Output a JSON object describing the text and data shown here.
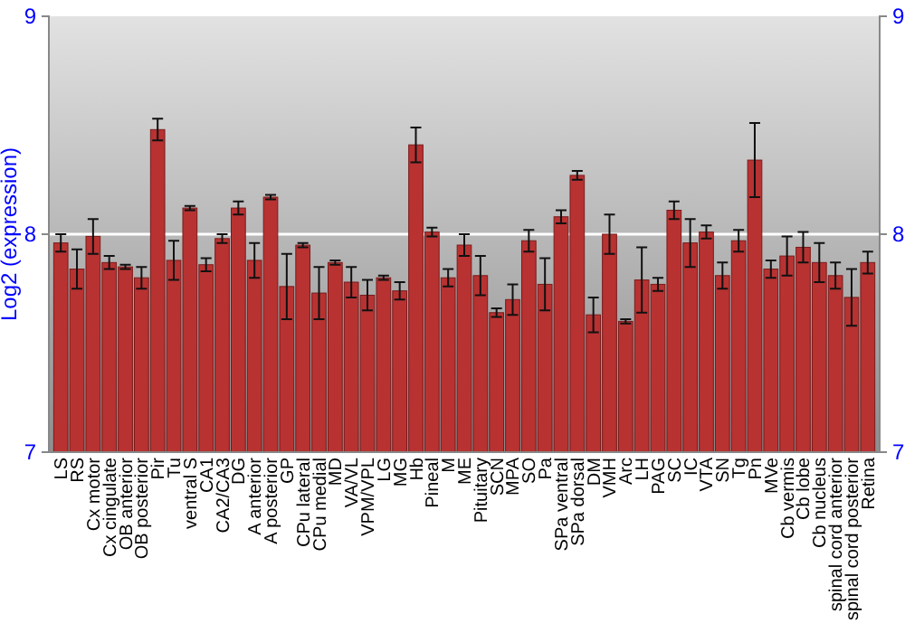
{
  "chart_data": {
    "type": "bar",
    "ylabel": "Log2 (expression)",
    "categories": [
      "LS",
      "RS",
      "Cx motor",
      "Cx cingulate",
      "OB anterior",
      "OB posterior",
      "Pir",
      "Tu",
      "ventral S",
      "CA1",
      "CA2/CA3",
      "DG",
      "A anterior",
      "A posterior",
      "GP",
      "CPu lateral",
      "CPu medial",
      "MD",
      "VA/VL",
      "VPM/VPL",
      "LG",
      "MG",
      "Hb",
      "Pineal",
      "M",
      "ME",
      "Pituitary",
      "SCN",
      "MPA",
      "SO",
      "Pa",
      "SPa ventral",
      "SPa dorsal",
      "DM",
      "VMH",
      "Arc",
      "LH",
      "PAG",
      "SC",
      "IC",
      "VTA",
      "SN",
      "Tg",
      "Pn",
      "MVe",
      "Cb vermis",
      "Cb lobe",
      "Cb nucleus",
      "spinal cord anterior",
      "spinal cord posterior",
      "Retina"
    ],
    "values": [
      7.96,
      7.84,
      7.99,
      7.87,
      7.85,
      7.8,
      8.48,
      7.88,
      8.12,
      7.86,
      7.98,
      8.12,
      7.88,
      8.17,
      7.76,
      7.95,
      7.73,
      7.87,
      7.78,
      7.72,
      7.8,
      7.74,
      8.41,
      8.01,
      7.8,
      7.95,
      7.81,
      7.64,
      7.7,
      7.97,
      7.77,
      8.08,
      8.27,
      7.63,
      8.0,
      7.6,
      7.79,
      7.77,
      8.11,
      7.96,
      8.01,
      7.81,
      7.97,
      8.34,
      7.84,
      7.9,
      7.94,
      7.87,
      7.81,
      7.71,
      7.87
    ],
    "errors": [
      0.04,
      0.09,
      0.08,
      0.03,
      0.01,
      0.05,
      0.05,
      0.09,
      0.01,
      0.03,
      0.02,
      0.03,
      0.08,
      0.01,
      0.15,
      0.01,
      0.12,
      0.01,
      0.07,
      0.07,
      0.01,
      0.04,
      0.08,
      0.02,
      0.04,
      0.05,
      0.09,
      0.02,
      0.07,
      0.05,
      0.12,
      0.03,
      0.02,
      0.08,
      0.09,
      0.01,
      0.15,
      0.03,
      0.04,
      0.11,
      0.03,
      0.06,
      0.05,
      0.17,
      0.04,
      0.09,
      0.07,
      0.09,
      0.06,
      0.13,
      0.05
    ],
    "color": "#b83232",
    "ylim": [
      7,
      9
    ],
    "yticks": [
      7,
      8,
      9
    ],
    "y2lim": [
      7,
      9
    ],
    "y2ticks": [
      7,
      8,
      9
    ],
    "grid": "y"
  }
}
